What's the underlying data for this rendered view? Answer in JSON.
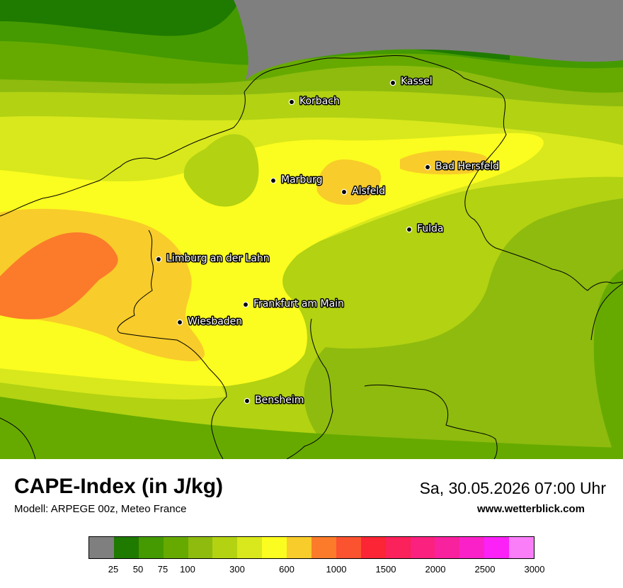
{
  "map": {
    "cities": [
      {
        "name": "Kassel"
      },
      {
        "name": "Korbach"
      },
      {
        "name": "Bad Hersfeld"
      },
      {
        "name": "Marburg"
      },
      {
        "name": "Alsfeld"
      },
      {
        "name": "Fulda"
      },
      {
        "name": "Limburg an der Lahn"
      },
      {
        "name": "Frankfurt am Main"
      },
      {
        "name": "Wiesbaden"
      },
      {
        "name": "Bensheim"
      }
    ]
  },
  "footer": {
    "title": "CAPE-Index (in J/kg)",
    "model": "Modell: ARPEGE 00z, Meteo France",
    "datetime": "Sa, 30.05.2026 07:00 Uhr",
    "site": "www.wetterblick.com"
  },
  "legend": {
    "colors": [
      "#7f7f7f",
      "#1f7a00",
      "#449a00",
      "#66aa00",
      "#8ebb0e",
      "#b2d212",
      "#d8e81c",
      "#fbfc1f",
      "#f8cc2a",
      "#fb7b2a",
      "#fb5230",
      "#fb2535",
      "#fb215a",
      "#fb217e",
      "#f8219e",
      "#fb21c8",
      "#fb21f7",
      "#fb7ef9"
    ],
    "ticks": [
      {
        "label": "25",
        "pos": 1
      },
      {
        "label": "50",
        "pos": 2
      },
      {
        "label": "75",
        "pos": 3
      },
      {
        "label": "100",
        "pos": 4
      },
      {
        "label": "300",
        "pos": 6
      },
      {
        "label": "600",
        "pos": 8
      },
      {
        "label": "1000",
        "pos": 10
      },
      {
        "label": "1500",
        "pos": 12
      },
      {
        "label": "2000",
        "pos": 14
      },
      {
        "label": "2500",
        "pos": 16
      },
      {
        "label": "3000",
        "pos": 18
      }
    ]
  }
}
